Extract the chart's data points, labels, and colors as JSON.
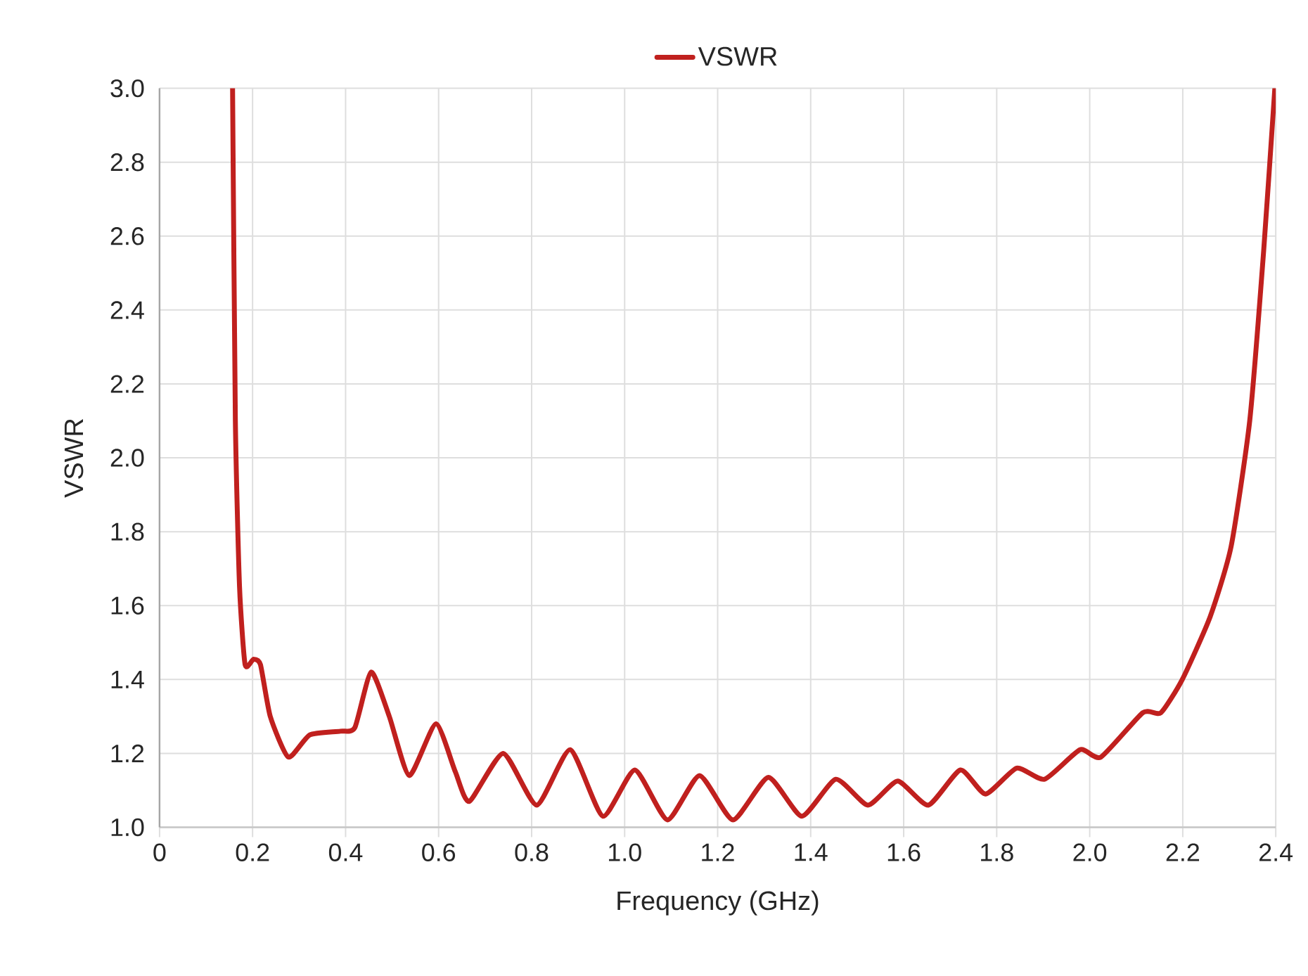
{
  "chart_data": {
    "type": "line",
    "xlabel": "Frequency (GHz)",
    "ylabel": "VSWR",
    "xlim": [
      0,
      2.4
    ],
    "ylim": [
      1.0,
      3.0
    ],
    "xticks": [
      0,
      0.2,
      0.4,
      0.6,
      0.8,
      {
        "value": 1,
        "label": "1.0"
      },
      1.2,
      1.4,
      1.6,
      1.8,
      {
        "value": 2,
        "label": "2.0"
      },
      2.2,
      2.4
    ],
    "yticks": [
      {
        "value": 1,
        "label": "1.0"
      },
      1.2,
      1.4,
      1.6,
      1.8,
      {
        "value": 2,
        "label": "2.0"
      },
      2.2,
      2.4,
      2.6,
      2.8,
      {
        "value": 3,
        "label": "3.0"
      }
    ],
    "grid": true,
    "legend": "top",
    "marker": "none",
    "line_style": "solid",
    "series": [
      {
        "name": "VSWR",
        "color": "#c0201e",
        "x": [
          0.157,
          0.163,
          0.172,
          0.184,
          0.202,
          0.217,
          0.238,
          0.277,
          0.323,
          0.389,
          0.42,
          0.455,
          0.494,
          0.537,
          0.594,
          0.636,
          0.666,
          0.739,
          0.811,
          0.883,
          0.953,
          1.022,
          1.092,
          1.161,
          1.233,
          1.309,
          1.381,
          1.454,
          1.523,
          1.587,
          1.653,
          1.722,
          1.776,
          1.843,
          1.903,
          1.979,
          2.024,
          2.114,
          2.153,
          2.199,
          2.259,
          2.304,
          2.344,
          2.374,
          2.398
        ],
        "values": [
          3.0,
          2.1,
          1.65,
          1.44,
          1.455,
          1.44,
          1.3,
          1.19,
          1.25,
          1.26,
          1.27,
          1.42,
          1.3,
          1.14,
          1.28,
          1.15,
          1.07,
          1.2,
          1.06,
          1.21,
          1.03,
          1.155,
          1.02,
          1.14,
          1.02,
          1.135,
          1.03,
          1.13,
          1.06,
          1.125,
          1.06,
          1.155,
          1.09,
          1.16,
          1.13,
          1.21,
          1.19,
          1.31,
          1.31,
          1.4,
          1.57,
          1.76,
          2.1,
          2.56,
          3.0
        ]
      }
    ]
  }
}
